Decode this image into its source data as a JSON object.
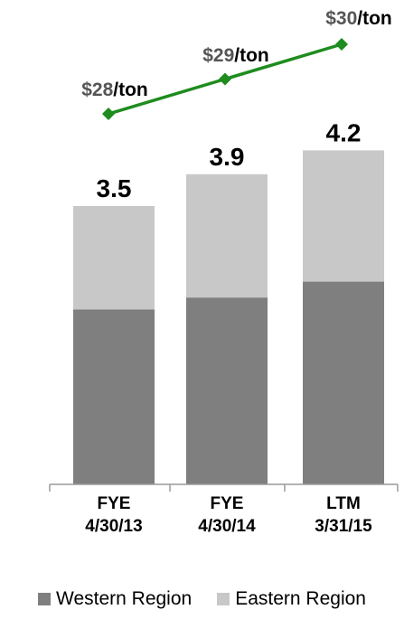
{
  "chart_data": {
    "type": "bar",
    "stacked": true,
    "categories": [
      [
        "FYE",
        "4/30/13"
      ],
      [
        "FYE",
        "4/30/14"
      ],
      [
        "LTM",
        "3/31/15"
      ]
    ],
    "series": [
      {
        "name": "Western Region",
        "values": [
          2.2,
          2.35,
          2.55
        ],
        "color": "#7f7f7f"
      },
      {
        "name": "Eastern Region",
        "values": [
          1.3,
          1.55,
          1.65
        ],
        "color": "#c8c8c8"
      }
    ],
    "totals": [
      "3.5",
      "3.9",
      "4.2"
    ],
    "price_line": {
      "color": "#1e8c1e",
      "values": [
        28,
        29,
        30
      ],
      "labels": [
        {
          "value": "$28",
          "unit": "/ton"
        },
        {
          "value": "$29",
          "unit": "/ton"
        },
        {
          "value": "$30",
          "unit": "/ton"
        }
      ]
    },
    "ylim": [
      0,
      4.8
    ],
    "grid": false,
    "legend_position": "bottom"
  }
}
